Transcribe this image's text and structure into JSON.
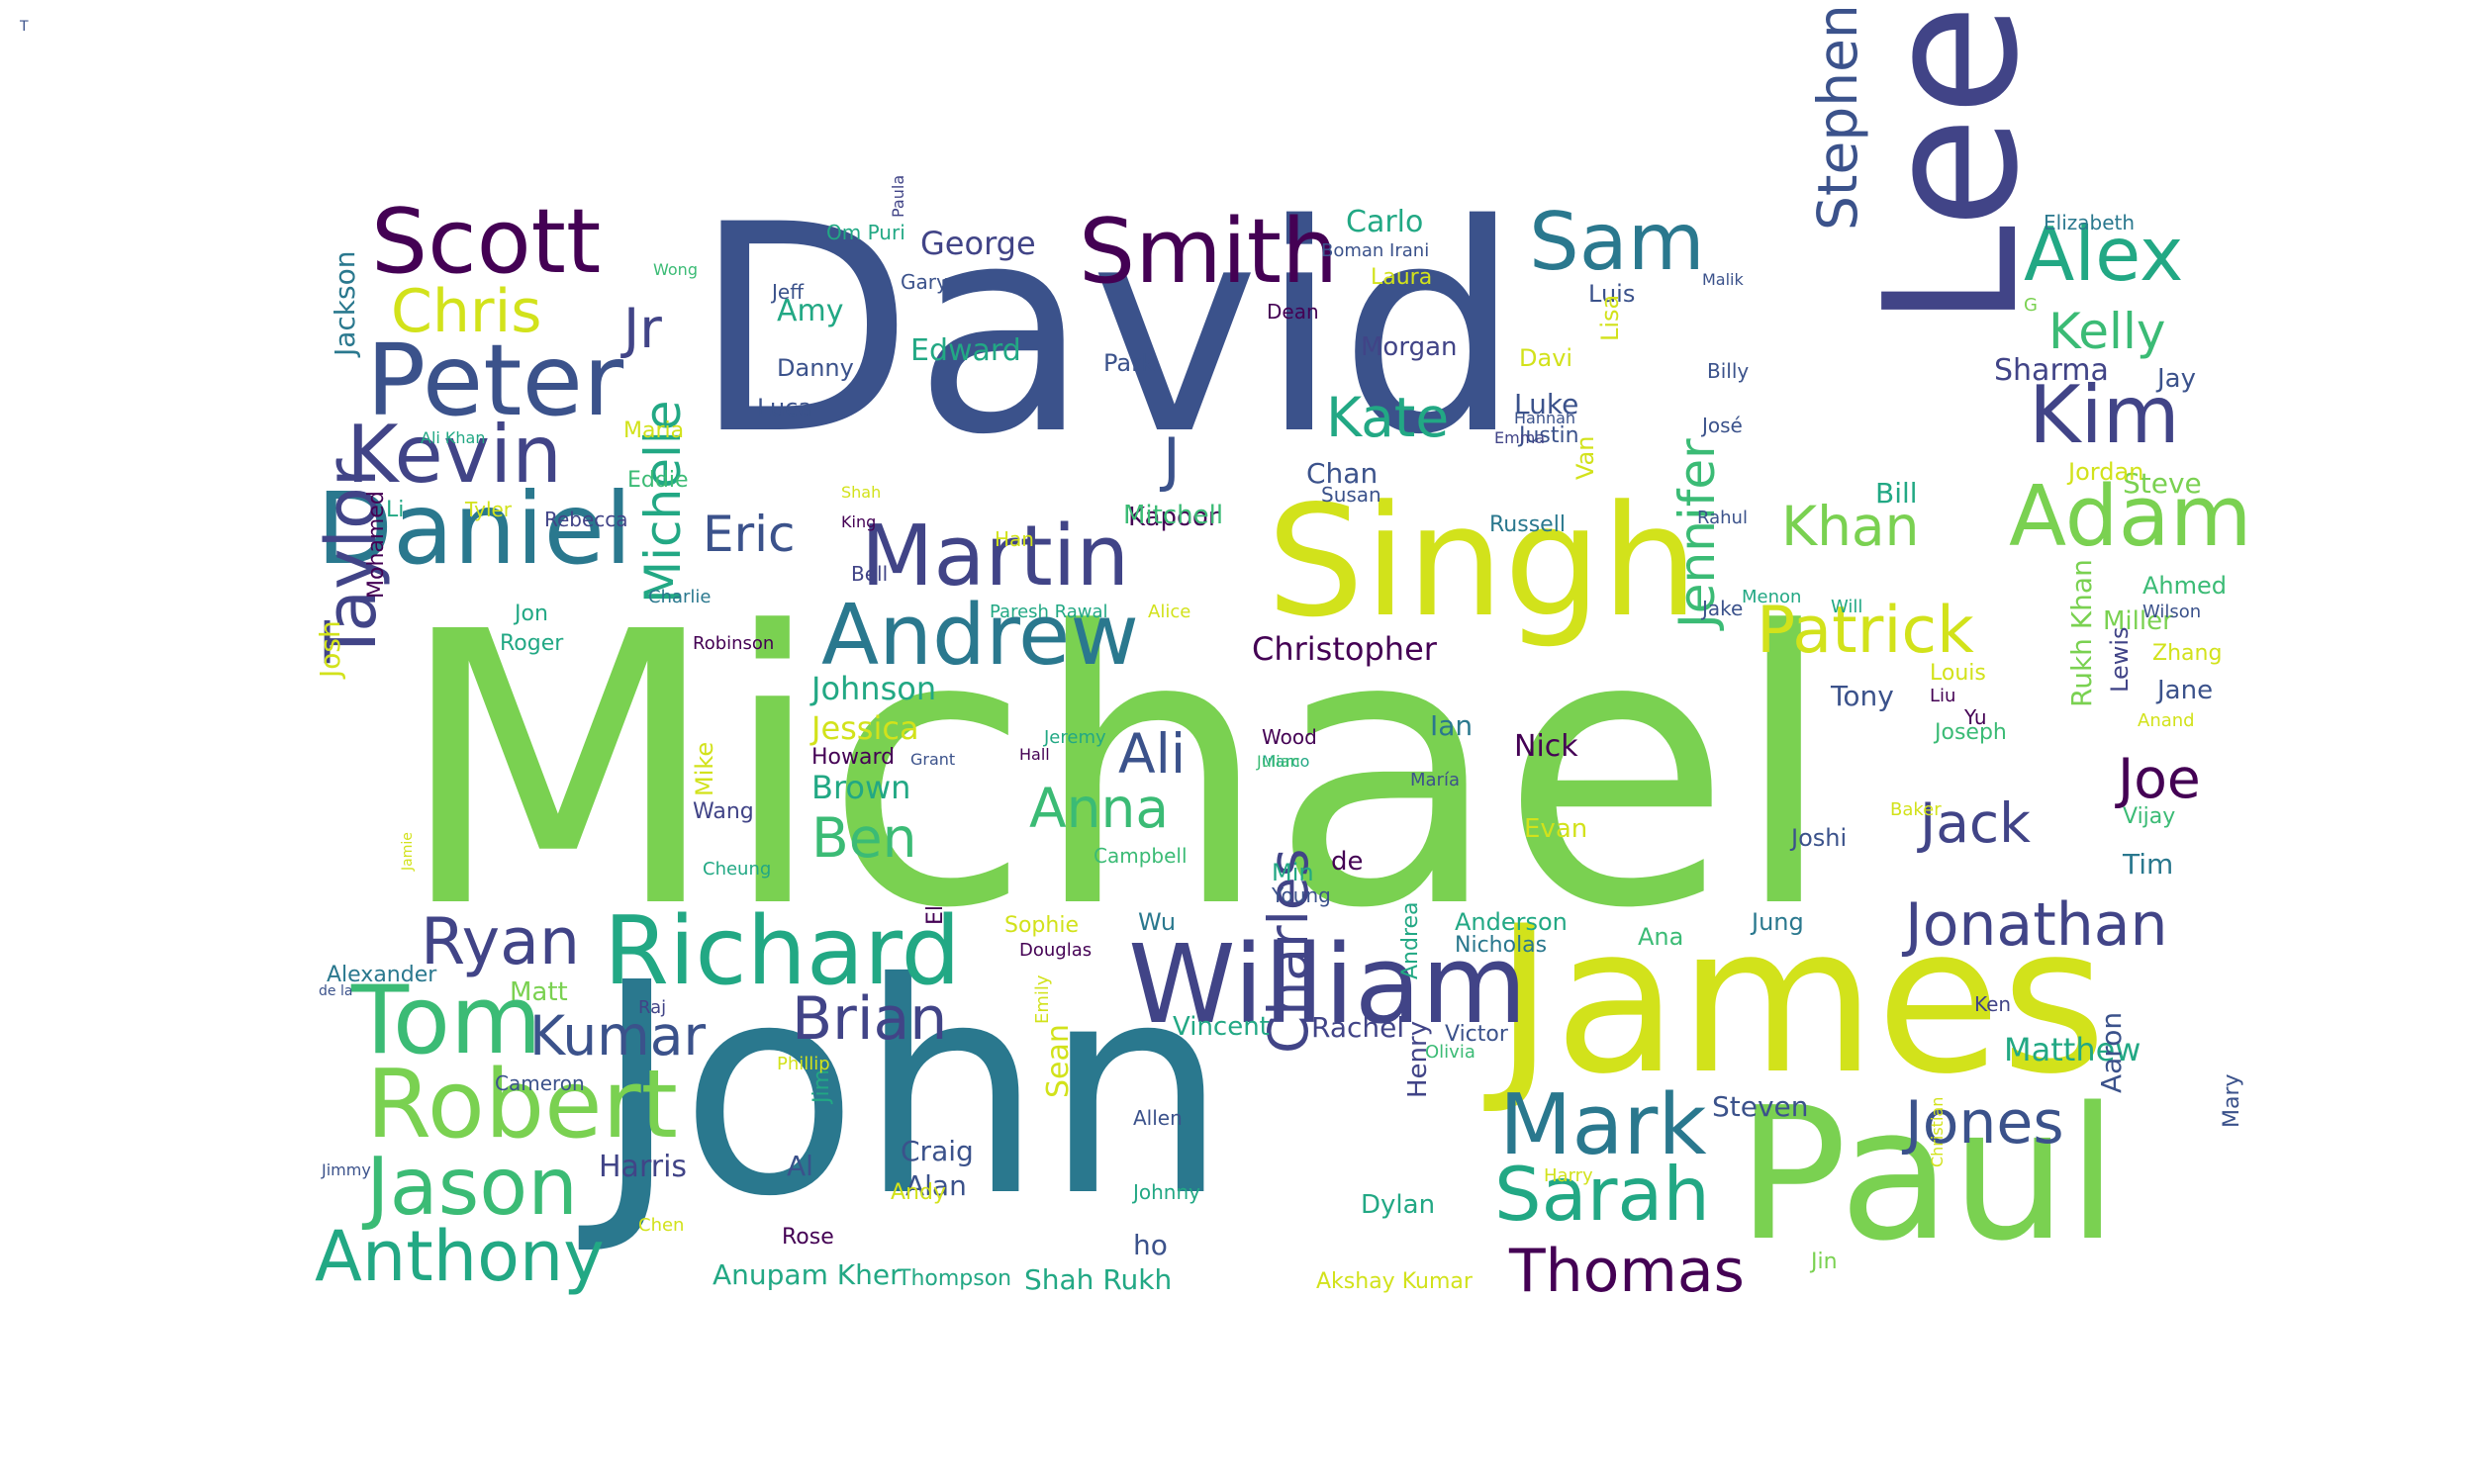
{
  "palette": {
    "yellow": "#d2e21b",
    "lightgreen": "#7ad151",
    "green": "#3bbb75",
    "teal": "#22a884",
    "cyan": "#2a788e",
    "blue": "#3b528b",
    "indigo": "#414487",
    "purple": "#440154"
  },
  "words": [
    {
      "text": "Michael",
      "color": "lightgreen"
    },
    {
      "text": "David",
      "color": "blue"
    },
    {
      "text": "John",
      "color": "cyan"
    },
    {
      "text": "James",
      "color": "yellow"
    },
    {
      "text": "Paul",
      "color": "lightgreen"
    },
    {
      "text": "Lee",
      "color": "indigo"
    },
    {
      "text": "Singh",
      "color": "yellow"
    },
    {
      "text": "William",
      "color": "indigo"
    },
    {
      "text": "Richard",
      "color": "teal"
    },
    {
      "text": "Robert",
      "color": "lightgreen"
    },
    {
      "text": "Daniel",
      "color": "cyan"
    },
    {
      "text": "Peter",
      "color": "blue"
    },
    {
      "text": "Scott",
      "color": "purple"
    },
    {
      "text": "Smith",
      "color": "purple"
    },
    {
      "text": "Martin",
      "color": "indigo"
    },
    {
      "text": "Andrew",
      "color": "cyan"
    },
    {
      "text": "Mark",
      "color": "cyan"
    },
    {
      "text": "Adam",
      "color": "lightgreen"
    },
    {
      "text": "Alex",
      "color": "teal"
    },
    {
      "text": "Kim",
      "color": "indigo"
    },
    {
      "text": "Jason",
      "color": "green"
    },
    {
      "text": "Tom",
      "color": "green"
    },
    {
      "text": "Kevin",
      "color": "indigo"
    },
    {
      "text": "Sam",
      "color": "cyan"
    },
    {
      "text": "Taylor",
      "color": "indigo"
    },
    {
      "text": "Anthony",
      "color": "teal"
    },
    {
      "text": "Sarah",
      "color": "teal"
    },
    {
      "text": "Thomas",
      "color": "purple"
    },
    {
      "text": "Jonathan",
      "color": "indigo"
    },
    {
      "text": "Jones",
      "color": "blue"
    },
    {
      "text": "Patrick",
      "color": "yellow"
    },
    {
      "text": "Charles",
      "color": "indigo"
    },
    {
      "text": "Brian",
      "color": "indigo"
    },
    {
      "text": "Ryan",
      "color": "indigo"
    },
    {
      "text": "Kate",
      "color": "teal"
    },
    {
      "text": "Stephen",
      "color": "blue"
    },
    {
      "text": "Michelle",
      "color": "teal"
    },
    {
      "text": "Jennifer",
      "color": "green"
    },
    {
      "text": "Kumar",
      "color": "blue"
    },
    {
      "text": "Khan",
      "color": "lightgreen"
    },
    {
      "text": "Kelly",
      "color": "green"
    },
    {
      "text": "Chris",
      "color": "yellow"
    },
    {
      "text": "Jack",
      "color": "indigo"
    },
    {
      "text": "Joe",
      "color": "purple"
    },
    {
      "text": "Anna",
      "color": "green"
    },
    {
      "text": "Ali",
      "color": "blue"
    },
    {
      "text": "Ben",
      "color": "green"
    },
    {
      "text": "Eric",
      "color": "blue"
    },
    {
      "text": "Jr",
      "color": "indigo"
    },
    {
      "text": "J",
      "color": "blue"
    },
    {
      "text": "Christopher",
      "color": "purple"
    },
    {
      "text": "Matthew",
      "color": "teal"
    },
    {
      "text": "Johnson",
      "color": "teal"
    },
    {
      "text": "George",
      "color": "indigo"
    },
    {
      "text": "Jessica",
      "color": "yellow"
    },
    {
      "text": "Brown",
      "color": "teal"
    },
    {
      "text": "Carlo",
      "color": "teal"
    },
    {
      "text": "Sharma",
      "color": "indigo"
    },
    {
      "text": "Edward",
      "color": "teal"
    },
    {
      "text": "Morgan",
      "color": "indigo"
    },
    {
      "text": "Steven",
      "color": "blue"
    },
    {
      "text": "Rachel",
      "color": "indigo"
    },
    {
      "text": "Luke",
      "color": "blue"
    },
    {
      "text": "Chan",
      "color": "blue"
    },
    {
      "text": "Kapoor",
      "color": "purple"
    },
    {
      "text": "Tony",
      "color": "blue"
    },
    {
      "text": "Nick",
      "color": "purple"
    },
    {
      "text": "Mitchell",
      "color": "green"
    },
    {
      "text": "Harris",
      "color": "indigo"
    },
    {
      "text": "Alan",
      "color": "blue"
    },
    {
      "text": "Craig",
      "color": "blue"
    },
    {
      "text": "Dylan",
      "color": "teal"
    },
    {
      "text": "Vincent",
      "color": "teal"
    },
    {
      "text": "Anderson",
      "color": "teal"
    },
    {
      "text": "Nicholas",
      "color": "cyan"
    },
    {
      "text": "Bill",
      "color": "teal"
    },
    {
      "text": "Steve",
      "color": "lightgreen"
    },
    {
      "text": "Jordan",
      "color": "yellow"
    },
    {
      "text": "Miller",
      "color": "lightgreen"
    },
    {
      "text": "Jane",
      "color": "blue"
    },
    {
      "text": "Jay",
      "color": "blue"
    },
    {
      "text": "Ahmed",
      "color": "green"
    },
    {
      "text": "Tim",
      "color": "cyan"
    },
    {
      "text": "Vijay",
      "color": "green"
    },
    {
      "text": "Joshi",
      "color": "blue"
    },
    {
      "text": "Jung",
      "color": "cyan"
    },
    {
      "text": "Ian",
      "color": "cyan"
    },
    {
      "text": "Amy",
      "color": "teal"
    },
    {
      "text": "Danny",
      "color": "blue"
    },
    {
      "text": "Luca",
      "color": "blue"
    },
    {
      "text": "Park",
      "color": "blue"
    },
    {
      "text": "Laura",
      "color": "yellow"
    },
    {
      "text": "Luis",
      "color": "blue"
    },
    {
      "text": "Davi",
      "color": "yellow"
    },
    {
      "text": "Justin",
      "color": "blue"
    },
    {
      "text": "Russell",
      "color": "cyan"
    },
    {
      "text": "Susan",
      "color": "blue"
    },
    {
      "text": "Eddie",
      "color": "green"
    },
    {
      "text": "Maria",
      "color": "yellow"
    },
    {
      "text": "Li",
      "color": "teal"
    },
    {
      "text": "Jon",
      "color": "teal"
    },
    {
      "text": "Roger",
      "color": "teal"
    },
    {
      "text": "Josh",
      "color": "yellow"
    },
    {
      "text": "Wang",
      "color": "indigo"
    },
    {
      "text": "Mike",
      "color": "yellow"
    },
    {
      "text": "Matt",
      "color": "lightgreen"
    },
    {
      "text": "Alexander",
      "color": "cyan"
    },
    {
      "text": "Jackson",
      "color": "cyan"
    },
    {
      "text": "Howard",
      "color": "purple"
    },
    {
      "text": "Wu",
      "color": "cyan"
    },
    {
      "text": "Young",
      "color": "blue"
    },
    {
      "text": "Min",
      "color": "teal"
    },
    {
      "text": "de",
      "color": "purple"
    },
    {
      "text": "Ana",
      "color": "green"
    },
    {
      "text": "Evan",
      "color": "yellow"
    },
    {
      "text": "Sean",
      "color": "yellow"
    },
    {
      "text": "Jim",
      "color": "teal"
    },
    {
      "text": "Al",
      "color": "blue"
    },
    {
      "text": "Andy",
      "color": "yellow"
    },
    {
      "text": "Rose",
      "color": "purple"
    },
    {
      "text": "ho",
      "color": "blue"
    },
    {
      "text": "Henry",
      "color": "indigo"
    },
    {
      "text": "Aaron",
      "color": "blue"
    },
    {
      "text": "Mary",
      "color": "blue"
    },
    {
      "text": "Lewis",
      "color": "indigo"
    },
    {
      "text": "Joseph",
      "color": "green"
    },
    {
      "text": "Rukh Khan",
      "color": "lightgreen"
    },
    {
      "text": "Yu",
      "color": "purple"
    },
    {
      "text": "Louis",
      "color": "yellow"
    },
    {
      "text": "Zhang",
      "color": "yellow"
    },
    {
      "text": "Shah Rukh",
      "color": "teal"
    },
    {
      "text": "Anupam Kher",
      "color": "teal"
    },
    {
      "text": "Thompson",
      "color": "teal"
    },
    {
      "text": "Akshay Kumar",
      "color": "yellow"
    },
    {
      "text": "Jin",
      "color": "lightgreen"
    },
    {
      "text": "Victor",
      "color": "blue"
    },
    {
      "text": "Andrea",
      "color": "teal"
    },
    {
      "text": "Om Puri",
      "color": "teal"
    },
    {
      "text": "Gary",
      "color": "blue"
    },
    {
      "text": "Jeff",
      "color": "blue"
    },
    {
      "text": "Dean",
      "color": "purple"
    },
    {
      "text": "Elizabeth",
      "color": "cyan"
    },
    {
      "text": "Malik",
      "color": "blue"
    },
    {
      "text": "Billy",
      "color": "blue"
    },
    {
      "text": "José",
      "color": "blue"
    },
    {
      "text": "Rahul",
      "color": "blue"
    },
    {
      "text": "Menon",
      "color": "teal"
    },
    {
      "text": "Will",
      "color": "teal"
    },
    {
      "text": "Wilson",
      "color": "blue"
    },
    {
      "text": "Anand",
      "color": "yellow"
    },
    {
      "text": "Liu",
      "color": "purple"
    },
    {
      "text": "Jake",
      "color": "blue"
    },
    {
      "text": "Baker",
      "color": "yellow"
    },
    {
      "text": "Ken",
      "color": "indigo"
    },
    {
      "text": "Boman Irani",
      "color": "blue"
    },
    {
      "text": "Paula",
      "color": "indigo"
    },
    {
      "text": "Wong",
      "color": "green"
    },
    {
      "text": "Hannah",
      "color": "blue"
    },
    {
      "text": "Emma",
      "color": "indigo"
    },
    {
      "text": "Lisa",
      "color": "yellow"
    },
    {
      "text": "Van",
      "color": "yellow"
    },
    {
      "text": "King",
      "color": "purple"
    },
    {
      "text": "Shah",
      "color": "yellow"
    },
    {
      "text": "Han",
      "color": "yellow"
    },
    {
      "text": "Bell",
      "color": "indigo"
    },
    {
      "text": "Rebecca",
      "color": "indigo"
    },
    {
      "text": "Tyler",
      "color": "yellow"
    },
    {
      "text": "Ali Khan",
      "color": "teal"
    },
    {
      "text": "Charlie",
      "color": "cyan"
    },
    {
      "text": "Robinson",
      "color": "purple"
    },
    {
      "text": "Paresh Rawal",
      "color": "teal"
    },
    {
      "text": "Alice",
      "color": "yellow"
    },
    {
      "text": "Jeremy",
      "color": "teal"
    },
    {
      "text": "Hall",
      "color": "purple"
    },
    {
      "text": "Marco",
      "color": "teal"
    },
    {
      "text": "Grant",
      "color": "blue"
    },
    {
      "text": "Wood",
      "color": "purple"
    },
    {
      "text": "Julian",
      "color": "green"
    },
    {
      "text": "María",
      "color": "blue"
    },
    {
      "text": "Campbell",
      "color": "green"
    },
    {
      "text": "Cheung",
      "color": "teal"
    },
    {
      "text": "El",
      "color": "purple"
    },
    {
      "text": "Sophie",
      "color": "yellow"
    },
    {
      "text": "Douglas",
      "color": "purple"
    },
    {
      "text": "Emily",
      "color": "yellow"
    },
    {
      "text": "Raj",
      "color": "indigo"
    },
    {
      "text": "Phillip",
      "color": "yellow"
    },
    {
      "text": "Cameron",
      "color": "blue"
    },
    {
      "text": "Allen",
      "color": "blue"
    },
    {
      "text": "Johnny",
      "color": "teal"
    },
    {
      "text": "Olivia",
      "color": "green"
    },
    {
      "text": "Harry",
      "color": "yellow"
    },
    {
      "text": "Christian",
      "color": "yellow"
    },
    {
      "text": "Jimmy",
      "color": "blue"
    },
    {
      "text": "Chen",
      "color": "yellow"
    },
    {
      "text": "Jamie",
      "color": "yellow"
    },
    {
      "text": "Mohamed",
      "color": "purple"
    },
    {
      "text": "de la",
      "color": "blue"
    },
    {
      "text": "G",
      "color": "lightgreen"
    },
    {
      "text": "T",
      "color": "blue"
    }
  ]
}
